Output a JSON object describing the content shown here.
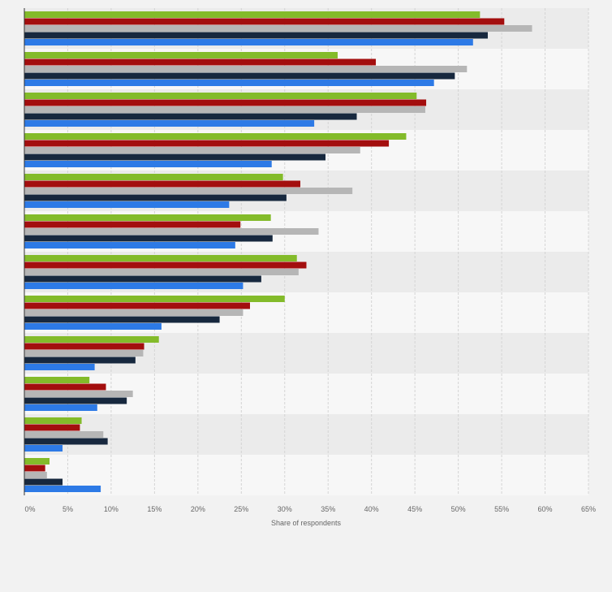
{
  "chart_data": {
    "type": "bar",
    "orientation": "horizontal",
    "xlabel": "Share of respondents",
    "ylabel": "",
    "xlim": [
      0,
      65
    ],
    "x_ticks": [
      "0%",
      "5%",
      "10%",
      "15%",
      "20%",
      "25%",
      "30%",
      "35%",
      "40%",
      "45%",
      "50%",
      "55%",
      "60%",
      "65%"
    ],
    "x_tick_values": [
      0,
      5,
      10,
      15,
      20,
      25,
      30,
      35,
      40,
      45,
      50,
      55,
      60,
      65
    ],
    "grid": true,
    "legend": "none",
    "category_count": 12,
    "series": [
      {
        "color": "#83bb2a",
        "values": [
          52.5,
          36.1,
          45.2,
          44.0,
          29.8,
          28.4,
          31.4,
          30.0,
          15.5,
          7.5,
          6.6,
          2.9
        ]
      },
      {
        "color": "#a30e0e",
        "values": [
          55.3,
          40.5,
          46.3,
          42.0,
          31.8,
          24.9,
          32.5,
          26.0,
          13.8,
          9.4,
          6.4,
          2.4
        ]
      },
      {
        "color": "#b6b6b6",
        "values": [
          58.5,
          51.0,
          46.2,
          38.7,
          37.8,
          33.9,
          31.6,
          25.2,
          13.7,
          12.5,
          9.1,
          2.6
        ]
      },
      {
        "color": "#17283e",
        "values": [
          53.4,
          49.6,
          38.3,
          34.7,
          30.2,
          28.6,
          27.3,
          22.5,
          12.8,
          11.8,
          9.6,
          4.4
        ]
      },
      {
        "color": "#2d7ae6",
        "values": [
          51.7,
          47.2,
          33.4,
          28.5,
          23.6,
          24.3,
          25.2,
          15.8,
          8.1,
          8.4,
          4.4,
          8.8
        ]
      }
    ]
  }
}
